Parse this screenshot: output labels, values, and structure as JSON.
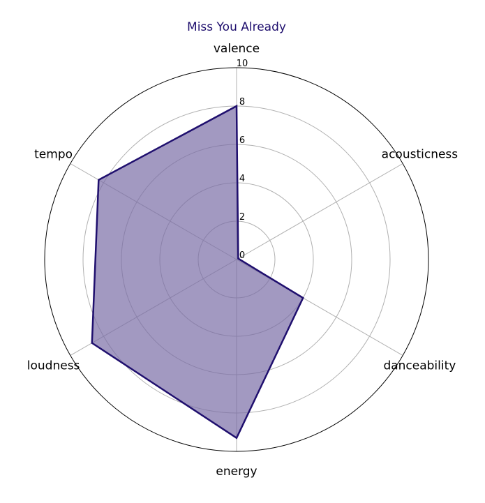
{
  "colors": {
    "title": "#1f0f6e",
    "series_line": "#1f0f6e",
    "series_fill": "#7b6da6",
    "grid": "#b0b0b0",
    "outer_ring": "#000000"
  },
  "chart_data": {
    "type": "radar",
    "title": "Miss You Already",
    "categories": [
      "valence",
      "acousticness",
      "danceability",
      "energy",
      "loudness",
      "tempo"
    ],
    "series": [
      {
        "values": [
          8.0,
          0.1,
          4.0,
          9.3,
          8.7,
          8.3
        ]
      }
    ],
    "rlim": [
      0,
      10
    ],
    "r_ticks": [
      "0",
      "2",
      "4",
      "6",
      "8",
      "10"
    ],
    "grid": true,
    "start_angle": "top",
    "direction": "clockwise"
  }
}
